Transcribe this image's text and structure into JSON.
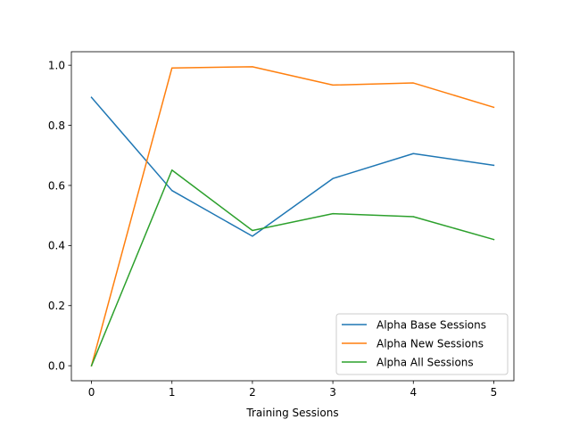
{
  "chart_data": {
    "type": "line",
    "title": "",
    "xlabel": "Training Sessions",
    "ylabel": "",
    "x": [
      0,
      1,
      2,
      3,
      4,
      5
    ],
    "xlim": [
      -0.25,
      5.25
    ],
    "ylim": [
      -0.05,
      1.045
    ],
    "xticks": [
      0,
      1,
      2,
      3,
      4,
      5
    ],
    "yticks": [
      0.0,
      0.2,
      0.4,
      0.6,
      0.8,
      1.0
    ],
    "xtick_labels": [
      "0",
      "1",
      "2",
      "3",
      "4",
      "5"
    ],
    "ytick_labels": [
      "0.0",
      "0.2",
      "0.4",
      "0.6",
      "0.8",
      "1.0"
    ],
    "grid": false,
    "legend_position": "lower-right",
    "series": [
      {
        "name": "Alpha Base Sessions",
        "color": "#1f77b4",
        "values": [
          0.893,
          0.583,
          0.431,
          0.623,
          0.706,
          0.667
        ]
      },
      {
        "name": "Alpha New Sessions",
        "color": "#ff7f0e",
        "values": [
          0.0,
          0.991,
          0.995,
          0.934,
          0.941,
          0.86
        ]
      },
      {
        "name": "Alpha All Sessions",
        "color": "#2ca02c",
        "values": [
          0.0,
          0.651,
          0.45,
          0.506,
          0.496,
          0.42
        ]
      }
    ]
  }
}
